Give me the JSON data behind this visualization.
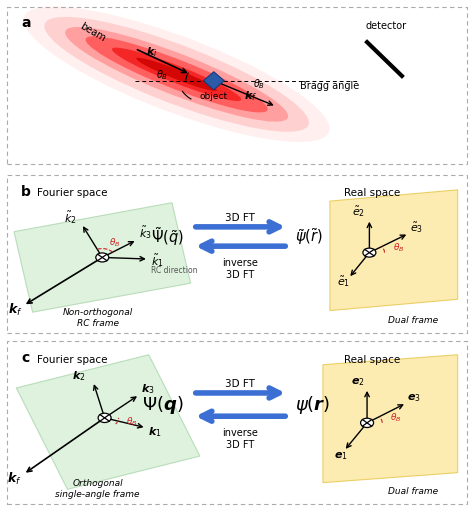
{
  "bg_color": "#ffffff",
  "border_color": "#bbbbbb",
  "panel_labels": [
    "a",
    "b",
    "c"
  ],
  "beam_color_inner": "#ff0000",
  "beam_color_outer": "#ffaaaa",
  "object_color": "#2B5BA8",
  "arrow_blue": "#3B6FD4",
  "arrow_red_dash": "#cc2222",
  "green_bg": "#d9f0d9",
  "yellow_bg": "#fde9a5",
  "green_edge": "#b0d8b0",
  "yellow_edge": "#e8c850"
}
